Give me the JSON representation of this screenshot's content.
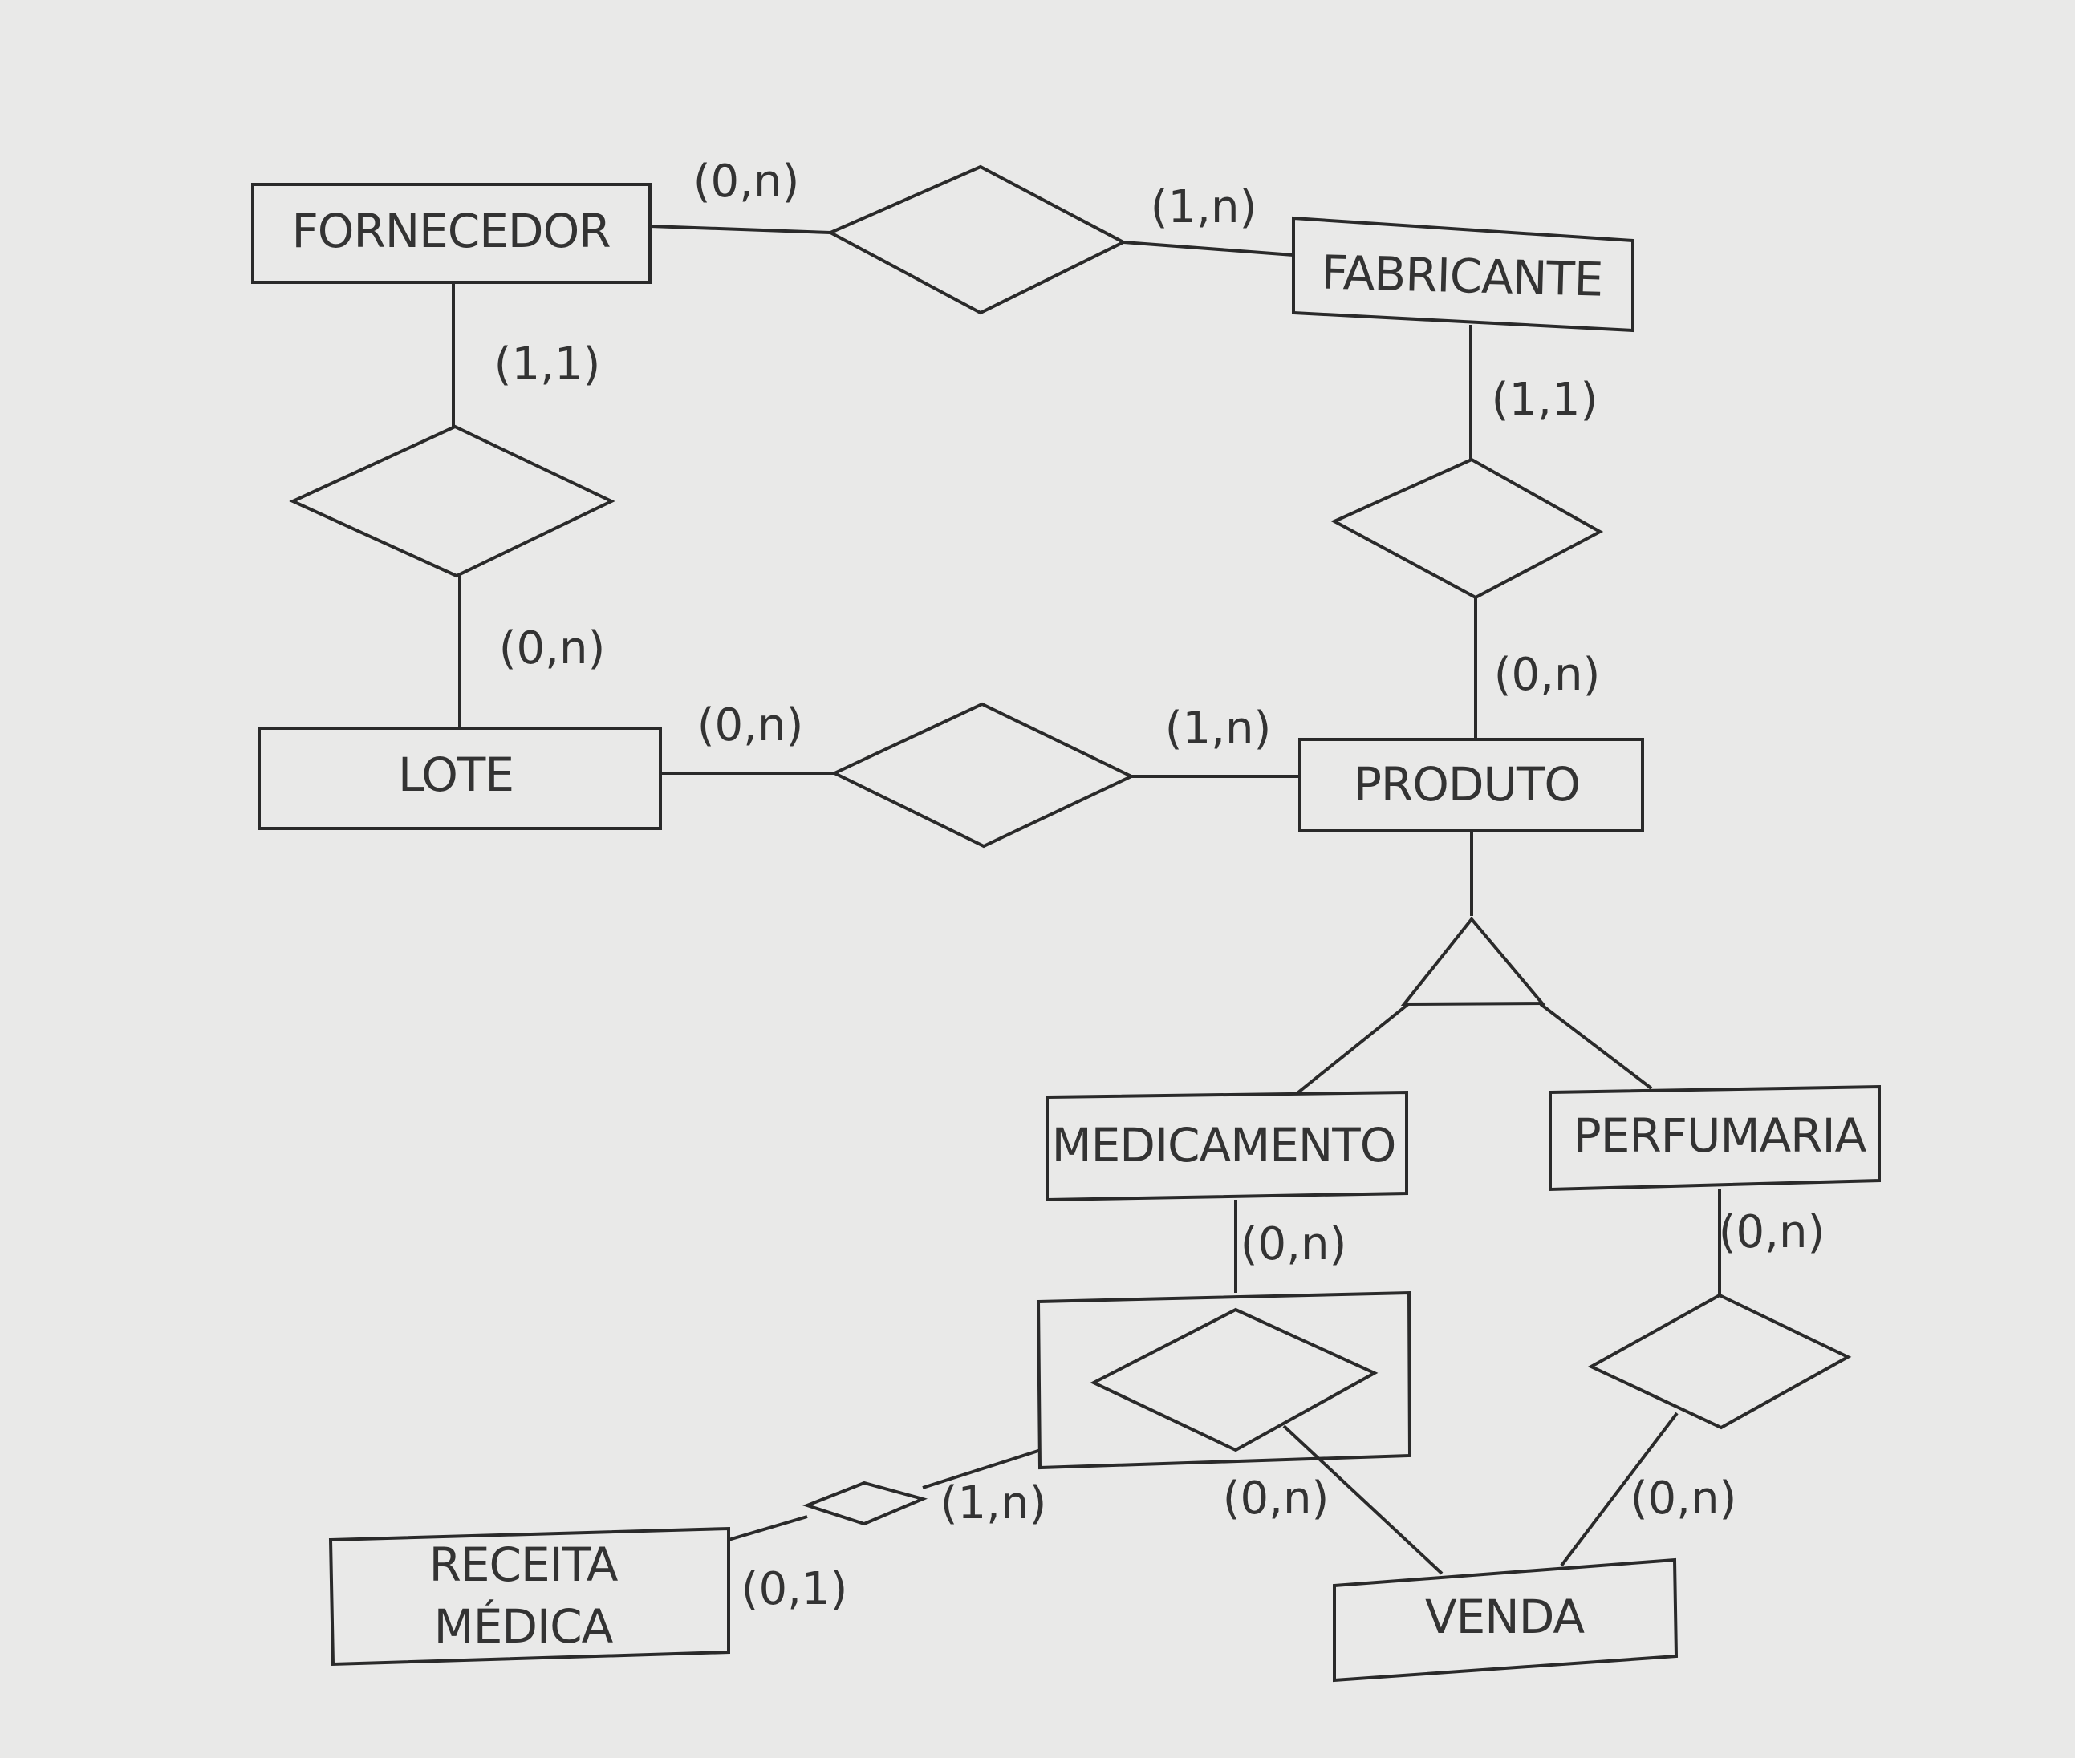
{
  "diagram": {
    "entities": {
      "fornecedor": "FORNECEDOR",
      "fabricante": "FABRICANTE",
      "lote": "LOTE",
      "produto": "PRODUTO",
      "medicamento": "MEDICAMENTO",
      "perfumaria": "PERFUMARIA",
      "receita_line1": "RECEITA",
      "receita_line2": "MÉDICA",
      "venda": "VENDA"
    },
    "cardinalities": {
      "fornecedor_fabricante_left": "(0,n)",
      "fornecedor_fabricante_right": "(1,n)",
      "fornecedor_lote_top": "(1,1)",
      "fornecedor_lote_bottom": "(0,n)",
      "fabricante_produto_top": "(1,1)",
      "fabricante_produto_bottom": "(0,n)",
      "lote_produto_left": "(0,n)",
      "lote_produto_right": "(1,n)",
      "medicamento_venda_top": "(0,n)",
      "medicamento_venda_bottom": "(0,n)",
      "aggregate_receita_right": "(1,n)",
      "aggregate_receita_left": "(0,1)",
      "perfumaria_venda_top": "(0,n)",
      "perfumaria_venda_bottom": "(0,n)"
    }
  }
}
